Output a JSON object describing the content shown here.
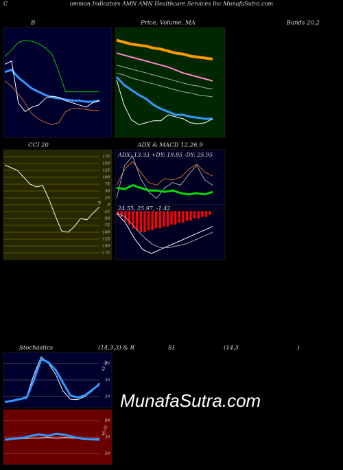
{
  "header": {
    "c": "C",
    "title": "ommon  Indicators AMN  AMN  Healthcare  Services Inc MunafaSutra.com"
  },
  "labels": {
    "b": "B",
    "price": "Price,  Volume,  MA",
    "bands": "Bands 20,2",
    "cci": "CCI 20",
    "adx": "ADX  &  MACD 12,26,9",
    "stoch": "Stochastics",
    "stoch_params": "(14,3,3) & R",
    "rsi": "SI",
    "rsi_params": "(14,5",
    "close": ")"
  },
  "watermark": "MunafaSutra.com",
  "chart_data": [
    {
      "type": "line",
      "background": "#00002e",
      "series": [
        {
          "color": "#00cc00",
          "values": [
            122,
            128,
            135,
            137,
            136,
            134,
            130,
            124,
            108,
            90,
            90,
            90,
            90,
            90,
            90
          ]
        },
        {
          "color": "#d2691e",
          "values": [
            100,
            95,
            88,
            80,
            70,
            65,
            62,
            60,
            62,
            72,
            75,
            75,
            74,
            73,
            73
          ]
        },
        {
          "color": "#3399ff",
          "width": 3,
          "values": [
            108,
            110,
            103,
            98,
            93,
            90,
            87,
            85,
            84,
            83,
            82,
            82,
            81,
            81,
            82
          ]
        },
        {
          "color": "#ffffff",
          "values": [
            115,
            118,
            80,
            72,
            76,
            78,
            84,
            86,
            85,
            82,
            80,
            78,
            76,
            80,
            82
          ]
        }
      ]
    },
    {
      "type": "line",
      "background": "#002800",
      "series": [
        {
          "color": "#ff9900",
          "width": 4,
          "values": [
            145,
            143,
            141,
            140,
            139,
            137,
            136,
            134,
            132,
            131,
            129,
            128,
            127,
            126
          ]
        },
        {
          "color": "#ff88cc",
          "width": 2,
          "values": [
            132,
            130,
            128,
            126,
            124,
            122,
            120,
            118,
            115,
            112,
            110,
            108,
            106,
            104
          ]
        },
        {
          "color": "#aaaaaa",
          "values": [
            120,
            118,
            116,
            114,
            112,
            110,
            108,
            106,
            104,
            102,
            100,
            99,
            97,
            96
          ]
        },
        {
          "color": "#aaaaaa",
          "values": [
            112,
            110,
            107,
            105,
            103,
            101,
            99,
            97,
            95,
            93,
            92,
            90,
            89,
            88
          ]
        },
        {
          "color": "#3399ff",
          "width": 3,
          "values": [
            108,
            100,
            95,
            90,
            86,
            80,
            76,
            73,
            70,
            70,
            68,
            67,
            66,
            66
          ]
        },
        {
          "color": "#ffffff",
          "values": [
            105,
            80,
            65,
            60,
            62,
            64,
            64,
            70,
            68,
            66,
            62,
            61,
            62,
            66
          ]
        }
      ]
    },
    {
      "type": "line",
      "background": "#262600",
      "gridcolor": "#6b6b00",
      "ylim": [
        -200,
        200
      ],
      "yticks": [
        175,
        150,
        125,
        100,
        75,
        50,
        25,
        0,
        -25,
        -50,
        -75,
        -100,
        -125,
        -150,
        -175
      ],
      "series": [
        {
          "color": "#ffffff",
          "values": [
            145,
            135,
            125,
            100,
            75,
            65,
            70,
            20,
            -40,
            -95,
            -100,
            -80,
            -50,
            -55,
            -30,
            -8
          ]
        }
      ],
      "annotations": [
        "-8"
      ]
    },
    {
      "type": "line",
      "background": "#000022",
      "series": [
        {
          "color": "#d2691e",
          "values": [
            40,
            52,
            58,
            50,
            42,
            40,
            45,
            44,
            46,
            52,
            56,
            50,
            47
          ]
        },
        {
          "color": "#aaaaaa",
          "values": [
            30,
            55,
            62,
            45,
            35,
            30,
            38,
            42,
            40,
            48,
            55,
            44,
            40
          ]
        },
        {
          "color": "#00dd00",
          "width": 3,
          "values": [
            38,
            37,
            40,
            38,
            36,
            36,
            35,
            36,
            34,
            33,
            34,
            33,
            35
          ]
        }
      ],
      "annotations": [
        "ADX: 13.33  +DY: 19.85  -DY: 25.95"
      ]
    },
    {
      "type": "macd",
      "background": "#000022",
      "histogram": {
        "color": "#ff0000",
        "values": [
          -2,
          -3,
          -5,
          -7,
          -9,
          -10,
          -11,
          -11,
          -10,
          -10,
          -9,
          -9,
          -8,
          -8,
          -7,
          -7,
          -6,
          -6,
          -5,
          -5,
          -4,
          -4,
          -3,
          -3,
          -2
        ]
      },
      "series": [
        {
          "color": "#ffffff",
          "values": [
            -1,
            -6,
            -14,
            -20,
            -22,
            -20,
            -18,
            -16,
            -14,
            -12,
            -10,
            -8
          ]
        },
        {
          "color": "#aaaaaa",
          "values": [
            -1,
            -3,
            -8,
            -13,
            -17,
            -19,
            -19,
            -18,
            -17,
            -15,
            -13,
            -11
          ]
        }
      ],
      "annotations": [
        "24.55,  25.97,  -1.42"
      ]
    },
    {
      "type": "line",
      "background": "#00002e",
      "gridcolor": "#555577",
      "ylim": [
        0,
        100
      ],
      "yticks": [
        80,
        50,
        20
      ],
      "series": [
        {
          "color": "#ffffff",
          "values": [
            10,
            12,
            15,
            20,
            60,
            92,
            80,
            60,
            30,
            15,
            14,
            20,
            30,
            45
          ]
        },
        {
          "color": "#3399ff",
          "width": 3,
          "values": [
            10,
            12,
            15,
            18,
            50,
            88,
            82,
            68,
            45,
            22,
            18,
            22,
            32,
            42
          ]
        }
      ],
      "annotations": [
        "45.74"
      ]
    },
    {
      "type": "line",
      "background": "#6a0000",
      "gridcolor": "#aa4444",
      "ylim": [
        0,
        100
      ],
      "yticks": [
        80,
        50,
        20
      ],
      "series": [
        {
          "color": "#ffffff",
          "values": [
            46,
            47,
            47,
            48,
            48,
            49,
            48,
            49,
            48,
            47,
            47,
            47
          ]
        },
        {
          "color": "#3399ff",
          "width": 3,
          "values": [
            45,
            47,
            48,
            52,
            55,
            52,
            56,
            54,
            50,
            47,
            46,
            45
          ]
        }
      ],
      "annotations": [
        "46.02"
      ]
    }
  ]
}
